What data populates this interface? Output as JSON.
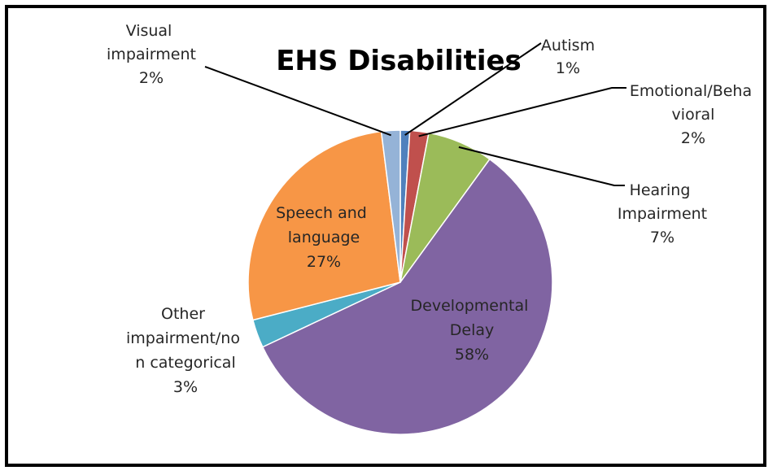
{
  "chart_data": {
    "type": "pie",
    "title": "EHS Disabilities",
    "slices": [
      {
        "label": "Autism",
        "value": 1,
        "percent_label": "1%",
        "color": "#4F81BD"
      },
      {
        "label": "Emotional/Behavioral",
        "value": 2,
        "percent_label": "2%",
        "color": "#C0504D"
      },
      {
        "label": "Hearing Impairment",
        "value": 7,
        "percent_label": "7%",
        "color": "#9BBB59"
      },
      {
        "label": "Developmental Delay",
        "value": 58,
        "percent_label": "58%",
        "color": "#8064A2"
      },
      {
        "label": "Other impairment/non categorical",
        "value": 3,
        "percent_label": "3%",
        "color": "#4BACC6"
      },
      {
        "label": "Speech and language",
        "value": 27,
        "percent_label": "27%",
        "color": "#F79646"
      },
      {
        "label": "Visual impairment",
        "value": 2,
        "percent_label": "2%",
        "color": "#95B3D7"
      }
    ],
    "legend": "none"
  }
}
